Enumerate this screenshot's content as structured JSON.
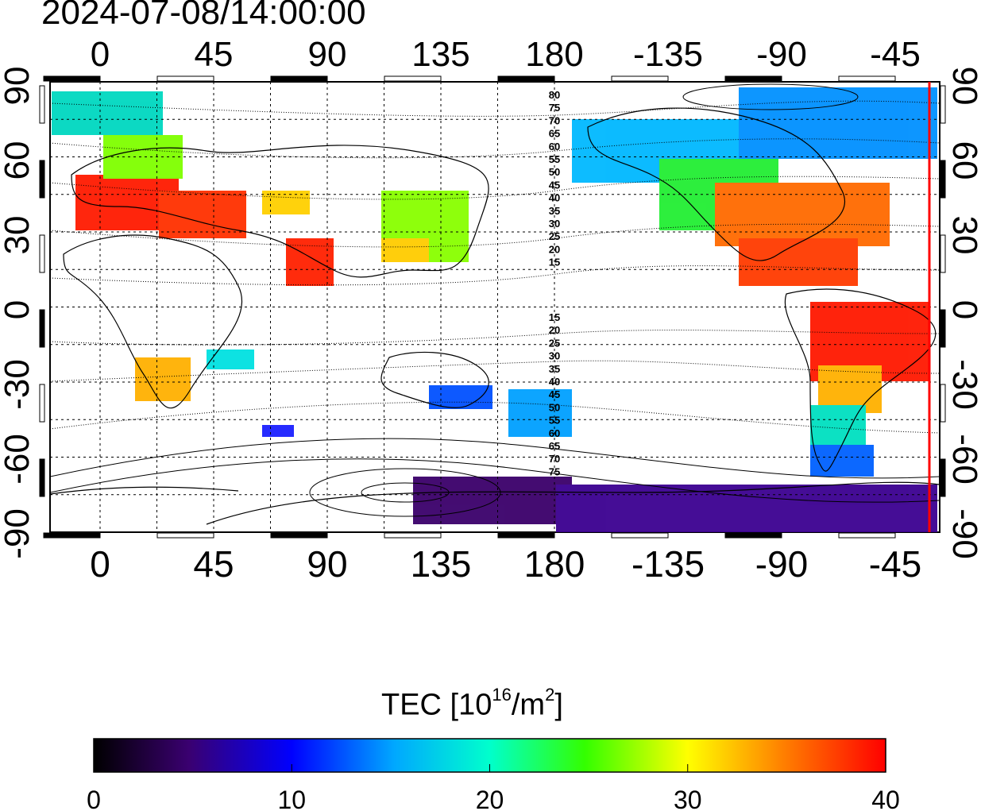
{
  "title": "2024-07-08/14:00:00",
  "map": {
    "top_lon_ticks": [
      "0",
      "45",
      "90",
      "135",
      "180",
      "-135",
      "-90",
      "-45"
    ],
    "bottom_lon_ticks": [
      "0",
      "45",
      "90",
      "135",
      "180",
      "-135",
      "-90",
      "-45"
    ],
    "left_lat_ticks": [
      "90",
      "60",
      "30",
      "0",
      "-30",
      "-60",
      "-90"
    ],
    "right_lat_ticks": [
      "90",
      "60",
      "30",
      "0",
      "-30",
      "-60",
      "-90"
    ],
    "contour_labels_north": [
      "80",
      "75",
      "70",
      "65",
      "60",
      "55",
      "50",
      "45",
      "40",
      "35",
      "30",
      "25",
      "20",
      "15"
    ],
    "contour_labels_south": [
      "15",
      "20",
      "25",
      "30",
      "35",
      "40",
      "45",
      "50",
      "55",
      "60",
      "65",
      "70",
      "75"
    ],
    "terminator_color": "#ff0000"
  },
  "colorbar": {
    "title_prefix": "TEC  [10",
    "title_exp": "16",
    "title_mid": "/m",
    "title_exp2": "2",
    "title_suffix": "]",
    "ticks": [
      "0",
      "10",
      "20",
      "30",
      "40"
    ],
    "range": [
      0,
      40
    ],
    "colors": [
      "#000000",
      "#3a0070",
      "#0000ff",
      "#00e5ff",
      "#00ff00",
      "#ffff00",
      "#ff8000",
      "#ff0000"
    ]
  }
}
